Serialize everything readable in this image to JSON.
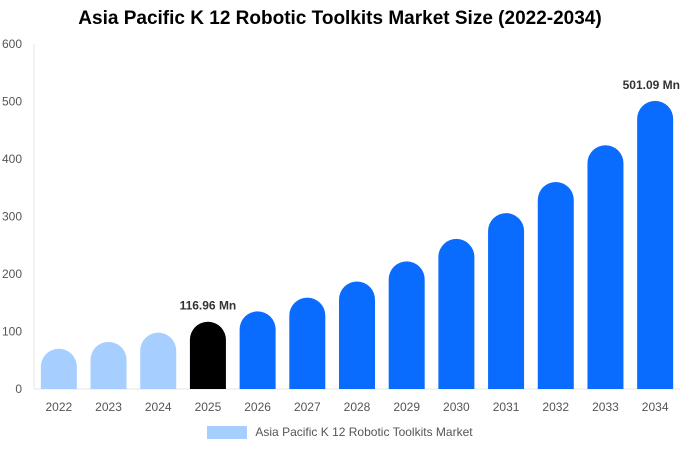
{
  "chart_data": {
    "type": "bar",
    "title": "Asia Pacific K 12 Robotic Toolkits Market Size (2022-2034)",
    "xlabel": "",
    "ylabel": "",
    "categories": [
      "2022",
      "2023",
      "2024",
      "2025",
      "2026",
      "2027",
      "2028",
      "2029",
      "2030",
      "2031",
      "2032",
      "2033",
      "2034"
    ],
    "series": [
      {
        "name": "Asia Pacific K 12 Robotic Toolkits Market",
        "values": [
          70,
          82,
          98,
          116.96,
          135,
          159,
          187,
          222,
          261,
          306,
          360,
          424,
          501.09
        ]
      }
    ],
    "ylim": [
      0,
      600
    ],
    "yticks": [
      0,
      100,
      200,
      300,
      400,
      500,
      600
    ],
    "grid": false,
    "legend_position": "bottom",
    "data_labels": [
      {
        "category": "2025",
        "text": "116.96 Mn"
      },
      {
        "category": "2034",
        "text": "501.09 Mn"
      }
    ],
    "colors": {
      "historical": "#a6ceff",
      "current": "#000000",
      "forecast": "#0a6cff",
      "legend": "#a6ceff",
      "axis_text": "#555555"
    },
    "year_groups": {
      "historical": [
        "2022",
        "2023",
        "2024"
      ],
      "current": [
        "2025"
      ]
    }
  }
}
